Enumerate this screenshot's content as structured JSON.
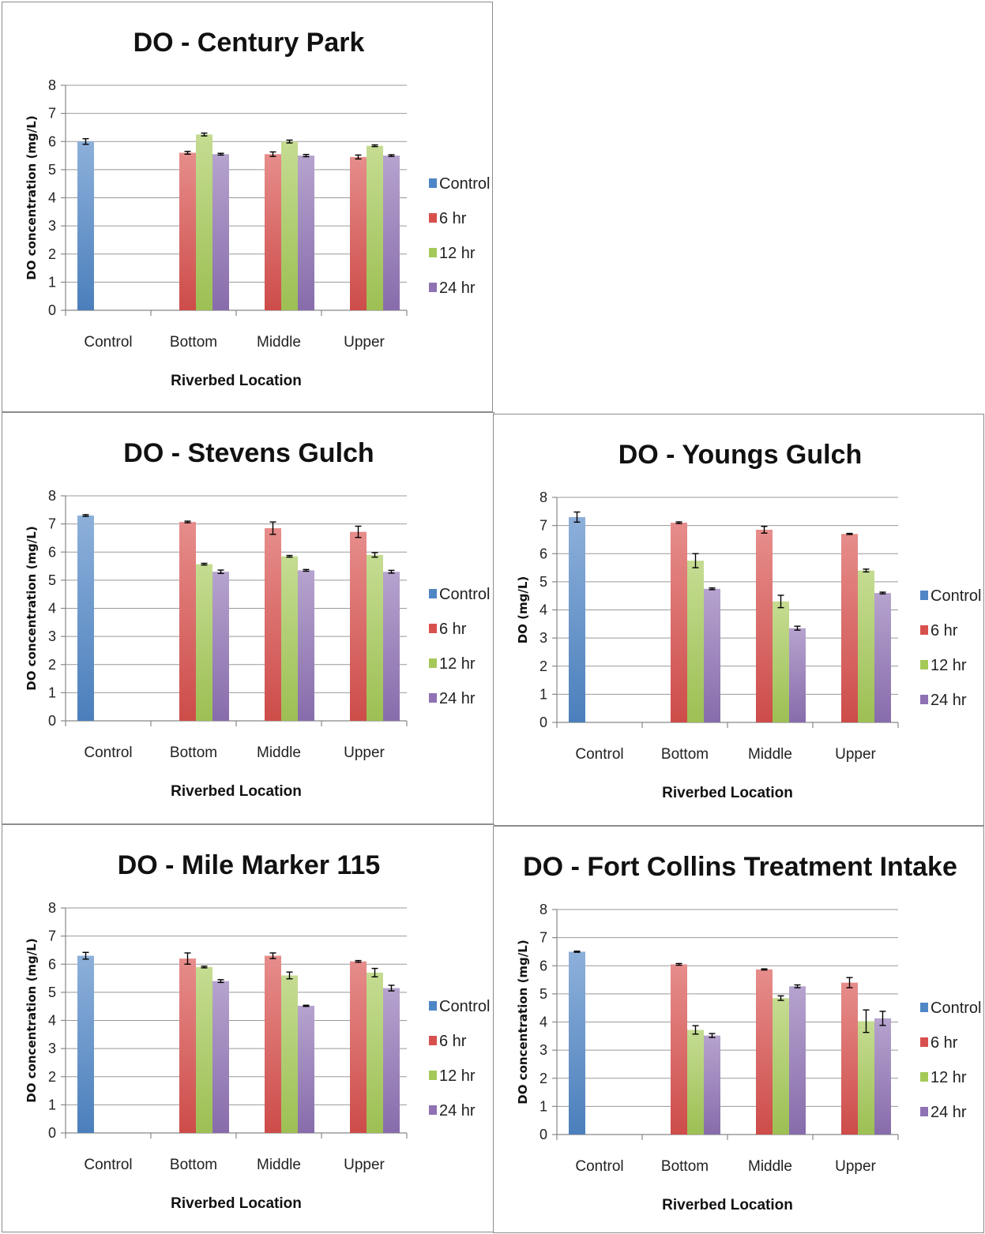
{
  "colors": {
    "Control": "#4f86c6",
    "6 hr": "#d8504d",
    "12 hr": "#a5c957",
    "24 hr": "#8e72b4"
  },
  "chart_data": [
    {
      "type": "bar",
      "title": "DO - Century Park",
      "xlabel": "Riverbed Location",
      "ylabel": "DO concentration (mg/L)",
      "ylim": [
        0,
        8
      ],
      "yticks": [
        0,
        1,
        2,
        3,
        4,
        5,
        6,
        7,
        8
      ],
      "grid": true,
      "legend": "right",
      "categories": [
        "Control",
        "Bottom",
        "Middle",
        "Upper"
      ],
      "series": [
        {
          "name": "Control",
          "values": [
            6.0,
            null,
            null,
            null
          ],
          "errors": [
            0.1,
            null,
            null,
            null
          ]
        },
        {
          "name": "6 hr",
          "values": [
            null,
            5.6,
            5.55,
            5.45
          ],
          "errors": [
            null,
            0.05,
            0.08,
            0.07
          ]
        },
        {
          "name": "12 hr",
          "values": [
            null,
            6.25,
            6.0,
            5.85
          ],
          "errors": [
            null,
            0.05,
            0.05,
            0.03
          ]
        },
        {
          "name": "24 hr",
          "values": [
            null,
            5.55,
            5.5,
            5.5
          ],
          "errors": [
            null,
            0.03,
            0.04,
            0.03
          ]
        }
      ]
    },
    {
      "type": "bar",
      "title": "DO - Stevens Gulch",
      "xlabel": "Riverbed Location",
      "ylabel": "DO concentration (mg/L)",
      "ylim": [
        0,
        8
      ],
      "yticks": [
        0,
        1,
        2,
        3,
        4,
        5,
        6,
        7,
        8
      ],
      "grid": true,
      "legend": "right",
      "categories": [
        "Control",
        "Bottom",
        "Middle",
        "Upper"
      ],
      "series": [
        {
          "name": "Control",
          "values": [
            7.3,
            null,
            null,
            null
          ],
          "errors": [
            0.03,
            null,
            null,
            null
          ]
        },
        {
          "name": "6 hr",
          "values": [
            null,
            7.07,
            6.85,
            6.72
          ],
          "errors": [
            null,
            0.03,
            0.22,
            0.2
          ]
        },
        {
          "name": "12 hr",
          "values": [
            null,
            5.57,
            5.85,
            5.9
          ],
          "errors": [
            null,
            0.03,
            0.03,
            0.08
          ]
        },
        {
          "name": "24 hr",
          "values": [
            null,
            5.3,
            5.35,
            5.3
          ],
          "errors": [
            null,
            0.06,
            0.03,
            0.05
          ]
        }
      ]
    },
    {
      "type": "bar",
      "title": "DO - Youngs Gulch",
      "xlabel": "Riverbed Location",
      "ylabel": "DO (mg/L)",
      "ylim": [
        0,
        8
      ],
      "yticks": [
        0,
        1,
        2,
        3,
        4,
        5,
        6,
        7,
        8
      ],
      "grid": true,
      "legend": "right",
      "categories": [
        "Control",
        "Bottom",
        "Middle",
        "Upper"
      ],
      "series": [
        {
          "name": "Control",
          "values": [
            7.3,
            null,
            null,
            null
          ],
          "errors": [
            0.18,
            null,
            null,
            null
          ]
        },
        {
          "name": "6 hr",
          "values": [
            null,
            7.1,
            6.85,
            6.7
          ],
          "errors": [
            null,
            0.03,
            0.12,
            0.02
          ]
        },
        {
          "name": "12 hr",
          "values": [
            null,
            5.75,
            4.3,
            5.4
          ],
          "errors": [
            null,
            0.25,
            0.22,
            0.05
          ]
        },
        {
          "name": "24 hr",
          "values": [
            null,
            4.75,
            3.35,
            4.6
          ],
          "errors": [
            null,
            0.03,
            0.07,
            0.03
          ]
        }
      ]
    },
    {
      "type": "bar",
      "title": "DO - Mile Marker 115",
      "xlabel": "Riverbed Location",
      "ylabel": "DO concentration (mg/L)",
      "ylim": [
        0,
        8
      ],
      "yticks": [
        0,
        1,
        2,
        3,
        4,
        5,
        6,
        7,
        8
      ],
      "grid": true,
      "legend": "right",
      "categories": [
        "Control",
        "Bottom",
        "Middle",
        "Upper"
      ],
      "series": [
        {
          "name": "Control",
          "values": [
            6.3,
            null,
            null,
            null
          ],
          "errors": [
            0.12,
            null,
            null,
            null
          ]
        },
        {
          "name": "6 hr",
          "values": [
            null,
            6.2,
            6.3,
            6.1
          ],
          "errors": [
            null,
            0.2,
            0.1,
            0.03
          ]
        },
        {
          "name": "12 hr",
          "values": [
            null,
            5.9,
            5.6,
            5.7
          ],
          "errors": [
            null,
            0.03,
            0.12,
            0.15
          ]
        },
        {
          "name": "24 hr",
          "values": [
            null,
            5.4,
            4.52,
            5.15
          ],
          "errors": [
            null,
            0.05,
            0.02,
            0.1
          ]
        }
      ]
    },
    {
      "type": "bar",
      "title": "DO - Fort Collins Treatment Intake",
      "xlabel": "Riverbed Location",
      "ylabel": "DO concentration (mg/L)",
      "ylim": [
        0,
        8
      ],
      "yticks": [
        0,
        1,
        2,
        3,
        4,
        5,
        6,
        7,
        8
      ],
      "grid": true,
      "legend": "right",
      "categories": [
        "Control",
        "Bottom",
        "Middle",
        "Upper"
      ],
      "series": [
        {
          "name": "Control",
          "values": [
            6.5,
            null,
            null,
            null
          ],
          "errors": [
            0.02,
            null,
            null,
            null
          ]
        },
        {
          "name": "6 hr",
          "values": [
            null,
            6.05,
            5.87,
            5.4
          ],
          "errors": [
            null,
            0.03,
            0.02,
            0.18
          ]
        },
        {
          "name": "12 hr",
          "values": [
            null,
            3.72,
            4.85,
            4.03
          ],
          "errors": [
            null,
            0.15,
            0.08,
            0.4
          ]
        },
        {
          "name": "24 hr",
          "values": [
            null,
            3.52,
            5.27,
            4.13
          ],
          "errors": [
            null,
            0.07,
            0.05,
            0.25
          ]
        }
      ]
    }
  ]
}
